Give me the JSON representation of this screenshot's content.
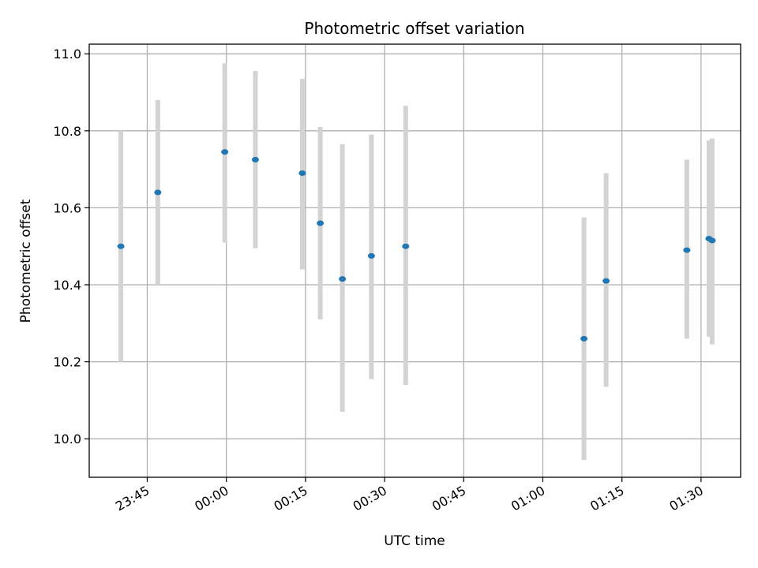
{
  "chart_data": {
    "type": "scatter",
    "title": "Photometric offset variation",
    "xlabel": "UTC time",
    "ylabel": "Photometric offset",
    "x_is_time": true,
    "xlim": [
      "23:34",
      "01:37.5"
    ],
    "ylim": [
      9.9,
      11.025
    ],
    "x_ticks": [
      "23:45",
      "00:00",
      "00:15",
      "00:30",
      "00:45",
      "01:00",
      "01:15",
      "01:30"
    ],
    "y_ticks": [
      "10.0",
      "10.2",
      "10.4",
      "10.6",
      "10.8",
      "11.0"
    ],
    "grid": true,
    "point_color": "#1f77b4",
    "errorbar_color": "#d3d3d3",
    "points": [
      {
        "x": "23:40",
        "y": 10.5,
        "ylow": 10.2,
        "yhigh": 10.8
      },
      {
        "x": "23:47",
        "y": 10.64,
        "ylow": 10.4,
        "yhigh": 10.88
      },
      {
        "x": "23:59.7",
        "y": 10.745,
        "ylow": 10.51,
        "yhigh": 10.975
      },
      {
        "x": "00:05.5",
        "y": 10.725,
        "ylow": 10.495,
        "yhigh": 10.955
      },
      {
        "x": "00:14.4",
        "y": 10.69,
        "ylow": 10.44,
        "yhigh": 10.935
      },
      {
        "x": "00:17.8",
        "y": 10.56,
        "ylow": 10.31,
        "yhigh": 10.81
      },
      {
        "x": "00:22",
        "y": 10.415,
        "ylow": 10.07,
        "yhigh": 10.765
      },
      {
        "x": "00:27.5",
        "y": 10.475,
        "ylow": 10.155,
        "yhigh": 10.79
      },
      {
        "x": "00:34",
        "y": 10.5,
        "ylow": 10.14,
        "yhigh": 10.865
      },
      {
        "x": "01:07.8",
        "y": 10.26,
        "ylow": 9.945,
        "yhigh": 10.575
      },
      {
        "x": "01:12",
        "y": 10.41,
        "ylow": 10.135,
        "yhigh": 10.69
      },
      {
        "x": "01:27.3",
        "y": 10.49,
        "ylow": 10.26,
        "yhigh": 10.725
      },
      {
        "x": "01:31.5",
        "y": 10.52,
        "ylow": 10.265,
        "yhigh": 10.775
      },
      {
        "x": "01:32.1",
        "y": 10.515,
        "ylow": 10.245,
        "yhigh": 10.78
      }
    ]
  }
}
